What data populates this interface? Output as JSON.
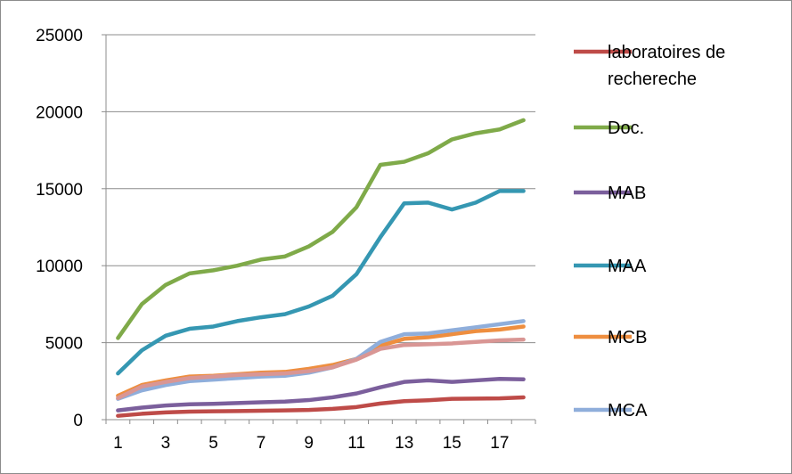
{
  "chart_data": {
    "type": "line",
    "title": "",
    "xlabel": "",
    "ylabel": "",
    "x": [
      1,
      2,
      3,
      4,
      5,
      6,
      7,
      8,
      9,
      10,
      11,
      12,
      13,
      14,
      15,
      16,
      17,
      18
    ],
    "x_tick_labels": [
      "1",
      "3",
      "5",
      "7",
      "9",
      "11",
      "13",
      "15",
      "17"
    ],
    "ylim": [
      0,
      25000
    ],
    "y_tick_labels": [
      "0",
      "5000",
      "10000",
      "15000",
      "20000",
      "25000"
    ],
    "grid": "horizontal major gridlines",
    "legend_position": "right",
    "series": [
      {
        "name": "laboratoires de rechereche",
        "color": "#be4b48",
        "values": [
          250,
          380,
          470,
          520,
          540,
          560,
          580,
          600,
          630,
          700,
          820,
          1050,
          1200,
          1260,
          1350,
          1370,
          1380,
          1450
        ]
      },
      {
        "name": "Doc.",
        "color": "#7faa49",
        "values": [
          5300,
          7500,
          8750,
          9500,
          9700,
          10000,
          10400,
          10600,
          11250,
          12200,
          13800,
          16550,
          16750,
          17300,
          18200,
          18600,
          18850,
          19450
        ]
      },
      {
        "name": "MAB",
        "color": "#7b5f9c",
        "values": [
          600,
          780,
          920,
          1000,
          1030,
          1080,
          1130,
          1170,
          1270,
          1450,
          1700,
          2100,
          2450,
          2550,
          2450,
          2550,
          2650,
          2620
        ]
      },
      {
        "name": "MAA",
        "color": "#3597b2",
        "values": [
          3000,
          4500,
          5450,
          5900,
          6050,
          6400,
          6650,
          6850,
          7350,
          8050,
          9450,
          11850,
          14050,
          14100,
          13650,
          14100,
          14850,
          14850
        ]
      },
      {
        "name": "MCB",
        "color": "#ee8e3f",
        "values": [
          1550,
          2250,
          2550,
          2800,
          2850,
          2950,
          3050,
          3100,
          3300,
          3550,
          3950,
          4800,
          5250,
          5350,
          5550,
          5750,
          5850,
          6050
        ]
      },
      {
        "name": "MCA",
        "color": "#8faedb",
        "values": [
          1350,
          1900,
          2250,
          2500,
          2600,
          2700,
          2800,
          2850,
          3050,
          3400,
          3950,
          5050,
          5550,
          5600,
          5800,
          6000,
          6200,
          6400
        ]
      },
      {
        "name": "",
        "color": "#d99694",
        "values": [
          1400,
          2150,
          2450,
          2700,
          2800,
          2900,
          2950,
          3000,
          3150,
          3400,
          3900,
          4600,
          4850,
          4900,
          4950,
          5050,
          5150,
          5200
        ]
      }
    ]
  }
}
